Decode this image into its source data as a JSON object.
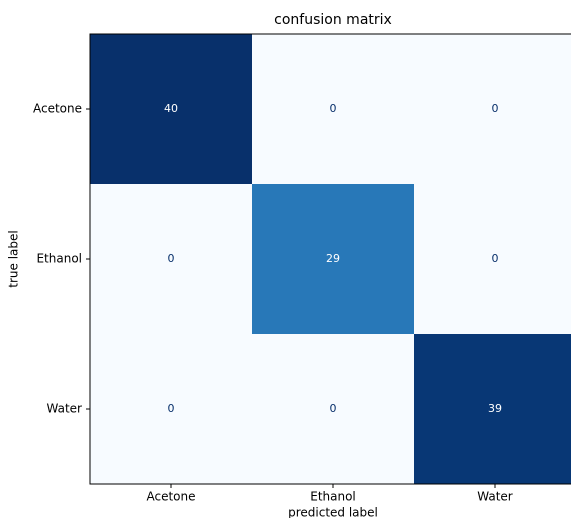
{
  "chart_data": {
    "type": "heatmap",
    "title": "confusion matrix",
    "x_label": "predicted label",
    "y_label": "true label",
    "columns": [
      "Acetone",
      "Ethanol",
      "Water"
    ],
    "rows": [
      "Acetone",
      "Ethanol",
      "Water"
    ],
    "values": [
      [
        40,
        0,
        0
      ],
      [
        0,
        29,
        0
      ],
      [
        0,
        0,
        39
      ]
    ],
    "colormap": [
      "#f7fbff",
      "#deebf7",
      "#c6dbef",
      "#9ecae1",
      "#6baed6",
      "#4292c6",
      "#2171b5",
      "#08519c",
      "#08306b"
    ]
  }
}
